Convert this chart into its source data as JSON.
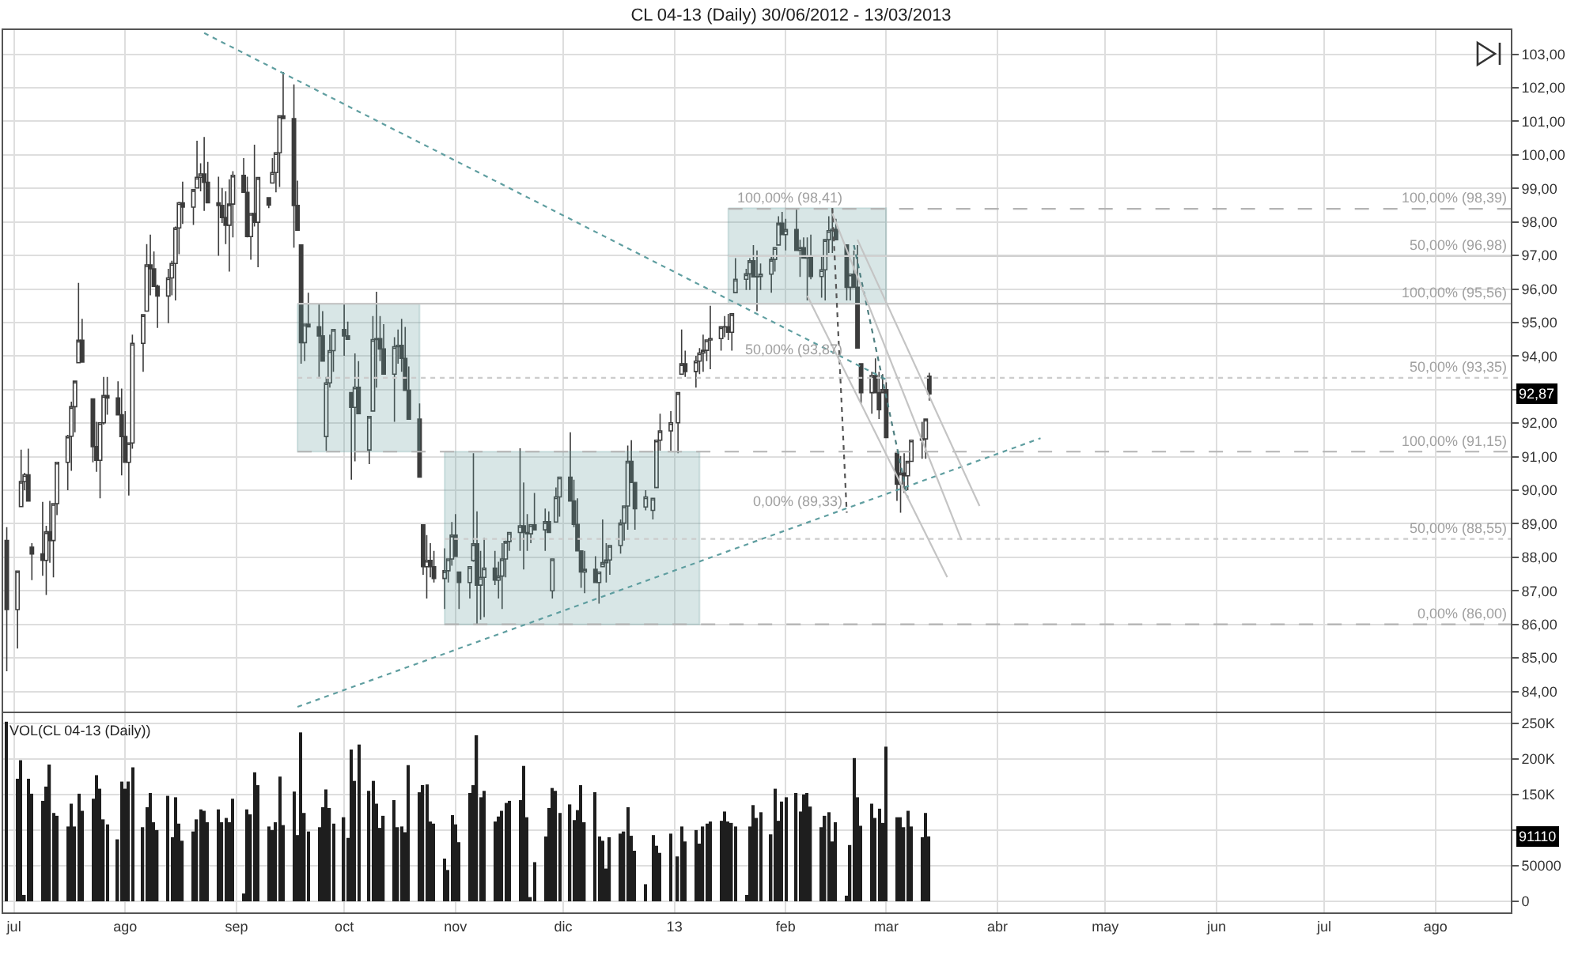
{
  "chart_data": [
    {
      "type": "candlestick",
      "title": "CL 04-13 (Daily) 30/06/2012 - 13/03/2013",
      "color": "#3c3c3c",
      "x": [
        "2012-06-29",
        "2012-07-02",
        "2012-07-03",
        "2012-07-04",
        "2012-07-05",
        "2012-07-06",
        "2012-07-09",
        "2012-07-10",
        "2012-07-11",
        "2012-07-12",
        "2012-07-13",
        "2012-07-16",
        "2012-07-17",
        "2012-07-18",
        "2012-07-19",
        "2012-07-20",
        "2012-07-23",
        "2012-07-24",
        "2012-07-25",
        "2012-07-26",
        "2012-07-27",
        "2012-07-30",
        "2012-07-31",
        "2012-08-01",
        "2012-08-02",
        "2012-08-03",
        "2012-08-06",
        "2012-08-07",
        "2012-08-08",
        "2012-08-09",
        "2012-08-10",
        "2012-08-13",
        "2012-08-14",
        "2012-08-15",
        "2012-08-16",
        "2012-08-17",
        "2012-08-20",
        "2012-08-21",
        "2012-08-22",
        "2012-08-23",
        "2012-08-24",
        "2012-08-27",
        "2012-08-28",
        "2012-08-29",
        "2012-08-30",
        "2012-08-31",
        "2012-09-03",
        "2012-09-04",
        "2012-09-05",
        "2012-09-06",
        "2012-09-07",
        "2012-09-10",
        "2012-09-11",
        "2012-09-12",
        "2012-09-13",
        "2012-09-14",
        "2012-09-17",
        "2012-09-18",
        "2012-09-19",
        "2012-09-20",
        "2012-09-21",
        "2012-09-24",
        "2012-09-25",
        "2012-09-26",
        "2012-09-27",
        "2012-09-28",
        "2012-10-01",
        "2012-10-02",
        "2012-10-03",
        "2012-10-04",
        "2012-10-05",
        "2012-10-08",
        "2012-10-09",
        "2012-10-10",
        "2012-10-11",
        "2012-10-12",
        "2012-10-15",
        "2012-10-16",
        "2012-10-17",
        "2012-10-18",
        "2012-10-19",
        "2012-10-22",
        "2012-10-23",
        "2012-10-24",
        "2012-10-25",
        "2012-10-26",
        "2012-10-29",
        "2012-10-30",
        "2012-10-31",
        "2012-11-01",
        "2012-11-02",
        "2012-11-05",
        "2012-11-06",
        "2012-11-07",
        "2012-11-08",
        "2012-11-09",
        "2012-11-12",
        "2012-11-13",
        "2012-11-14",
        "2012-11-15",
        "2012-11-16",
        "2012-11-19",
        "2012-11-20",
        "2012-11-21",
        "2012-11-22",
        "2012-11-23",
        "2012-11-26",
        "2012-11-27",
        "2012-11-28",
        "2012-11-29",
        "2012-11-30",
        "2012-12-03",
        "2012-12-04",
        "2012-12-05",
        "2012-12-06",
        "2012-12-07",
        "2012-12-10",
        "2012-12-11",
        "2012-12-12",
        "2012-12-13",
        "2012-12-14",
        "2012-12-17",
        "2012-12-18",
        "2012-12-19",
        "2012-12-20",
        "2012-12-21",
        "2012-12-24",
        "2012-12-26",
        "2012-12-27",
        "2012-12-28",
        "2012-12-31",
        "2013-01-02",
        "2013-01-03",
        "2013-01-04",
        "2013-01-07",
        "2013-01-08",
        "2013-01-09",
        "2013-01-10",
        "2013-01-11",
        "2013-01-14",
        "2013-01-15",
        "2013-01-16",
        "2013-01-17",
        "2013-01-18",
        "2013-01-21",
        "2013-01-22",
        "2013-01-23",
        "2013-01-24",
        "2013-01-25",
        "2013-01-28",
        "2013-01-29",
        "2013-01-30",
        "2013-01-31",
        "2013-02-01",
        "2013-02-04",
        "2013-02-05",
        "2013-02-06",
        "2013-02-07",
        "2013-02-08",
        "2013-02-11",
        "2013-02-12",
        "2013-02-13",
        "2013-02-14",
        "2013-02-15",
        "2013-02-18",
        "2013-02-19",
        "2013-02-20",
        "2013-02-21",
        "2013-02-22",
        "2013-02-25",
        "2013-02-26",
        "2013-02-27",
        "2013-02-28",
        "2013-03-01",
        "2013-03-04",
        "2013-03-05",
        "2013-03-06",
        "2013-03-07",
        "2013-03-08",
        "2013-03-11",
        "2013-03-12",
        "2013-03-13"
      ],
      "ohlc": [
        [
          88.5,
          88.9,
          84.6,
          86.44
        ],
        [
          86.44,
          87.59,
          85.28,
          87.59
        ],
        [
          89.51,
          91.21,
          89.51,
          90.26
        ],
        [
          90.26,
          90.52,
          90.0,
          90.46
        ],
        [
          90.46,
          91.24,
          89.68,
          89.68
        ],
        [
          88.3,
          88.42,
          87.32,
          88.1
        ],
        [
          88.1,
          89.65,
          87.45,
          87.91
        ],
        [
          87.91,
          88.94,
          86.88,
          88.76
        ],
        [
          88.76,
          89.68,
          87.84,
          88.5
        ],
        [
          88.5,
          89.6,
          87.4,
          89.6
        ],
        [
          89.6,
          90.83,
          89.26,
          90.83
        ],
        [
          90.83,
          91.65,
          90.0,
          91.61
        ],
        [
          91.61,
          92.64,
          90.58,
          92.49
        ],
        [
          92.49,
          93.25,
          91.73,
          93.25
        ],
        [
          93.8,
          96.18,
          93.8,
          94.47
        ],
        [
          94.47,
          95.11,
          93.82,
          93.82
        ],
        [
          92.72,
          92.72,
          90.83,
          91.3
        ],
        [
          91.3,
          92.04,
          90.55,
          90.89
        ],
        [
          90.89,
          92.01,
          89.76,
          92.01
        ],
        [
          92.01,
          93.38,
          91.96,
          92.82
        ],
        [
          92.82,
          93.38,
          92.25,
          92.75
        ],
        [
          92.75,
          93.25,
          92.25,
          92.25
        ],
        [
          92.25,
          93.03,
          90.44,
          91.6
        ],
        [
          91.6,
          92.36,
          90.83,
          90.83
        ],
        [
          90.83,
          91.41,
          89.84,
          91.41
        ],
        [
          91.41,
          94.64,
          91.24,
          94.38
        ],
        [
          94.38,
          95.23,
          93.53,
          95.23
        ],
        [
          95.34,
          97.34,
          95.34,
          96.72
        ],
        [
          96.72,
          97.62,
          95.81,
          96.6
        ],
        [
          96.6,
          97.12,
          96.08,
          96.08
        ],
        [
          96.08,
          96.13,
          94.84,
          95.79
        ],
        [
          95.79,
          96.6,
          94.98,
          96.33
        ],
        [
          96.33,
          96.84,
          95.81,
          96.76
        ],
        [
          96.76,
          97.86,
          95.66,
          97.82
        ],
        [
          97.82,
          98.6,
          97.04,
          98.57
        ],
        [
          98.57,
          99.2,
          97.94,
          98.44
        ],
        [
          98.44,
          98.96,
          97.91,
          98.96
        ],
        [
          99.01,
          100.42,
          99.01,
          99.33
        ],
        [
          99.33,
          99.75,
          98.91,
          99.43
        ],
        [
          99.43,
          100.53,
          98.33,
          99.18
        ],
        [
          99.18,
          99.79,
          98.57,
          98.57
        ],
        [
          98.57,
          99.35,
          96.99,
          98.49
        ],
        [
          98.49,
          99.01,
          97.97,
          98.13
        ],
        [
          98.13,
          98.91,
          97.34,
          97.9
        ],
        [
          97.9,
          99.27,
          96.52,
          98.53
        ],
        [
          98.53,
          99.51,
          97.54,
          99.39
        ],
        [
          99.39,
          99.9,
          98.88,
          98.88
        ],
        [
          98.88,
          99.35,
          97.54,
          97.56
        ],
        [
          97.56,
          98.25,
          96.87,
          98.25
        ],
        [
          98.25,
          100.3,
          97.86,
          97.99
        ],
        [
          97.99,
          99.32,
          96.65,
          99.32
        ],
        [
          98.72,
          98.72,
          98.41,
          98.5
        ],
        [
          99.16,
          99.9,
          99.16,
          99.47
        ],
        [
          99.47,
          100.06,
          98.88,
          100.06
        ],
        [
          100.06,
          101.16,
          99.04,
          101.16
        ],
        [
          101.16,
          102.47,
          101.08,
          101.08
        ],
        [
          101.08,
          102.1,
          97.23,
          98.49
        ],
        [
          98.49,
          99.23,
          97.75,
          97.75
        ],
        [
          97.31,
          97.31,
          93.77,
          94.4
        ],
        [
          94.4,
          94.95,
          93.85,
          94.95
        ],
        [
          94.95,
          95.89,
          94.87,
          94.87
        ],
        [
          94.87,
          95.58,
          93.38,
          94.6
        ],
        [
          94.6,
          95.34,
          93.85,
          93.85
        ],
        [
          91.6,
          93.38,
          91.18,
          93.2
        ],
        [
          93.2,
          94.64,
          93.06,
          94.16
        ],
        [
          94.16,
          94.79,
          93.53,
          94.79
        ],
        [
          94.79,
          95.58,
          94.01,
          94.6
        ],
        [
          94.6,
          95.03,
          94.48,
          94.5
        ],
        [
          92.91,
          92.91,
          90.31,
          92.47
        ],
        [
          92.47,
          94.08,
          90.86,
          93.07
        ],
        [
          93.07,
          93.85,
          92.28,
          92.28
        ],
        [
          91.2,
          92.2,
          90.78,
          92.2
        ],
        [
          92.36,
          95.19,
          92.36,
          94.49
        ],
        [
          94.49,
          95.92,
          93.06,
          94.52
        ],
        [
          94.52,
          95.19,
          93.85,
          94.21
        ],
        [
          94.21,
          94.95,
          93.46,
          93.46
        ],
        [
          93.46,
          94.56,
          92.04,
          94.28
        ],
        [
          94.28,
          94.79,
          93.77,
          94.32
        ],
        [
          94.32,
          95.11,
          93.53,
          93.93
        ],
        [
          93.93,
          94.87,
          92.98,
          92.98
        ],
        [
          92.98,
          93.69,
          92.12,
          92.12
        ],
        [
          92.12,
          92.59,
          90.39,
          90.39
        ],
        [
          88.97,
          88.97,
          87.48,
          87.72
        ],
        [
          87.72,
          88.66,
          86.77,
          87.91
        ],
        [
          87.91,
          88.42,
          87.4,
          87.72
        ],
        [
          87.72,
          88.19,
          87.25,
          87.37
        ],
        [
          87.37,
          88.27,
          86.46,
          87.6
        ],
        [
          87.6,
          87.95,
          87.25,
          87.95
        ],
        [
          87.95,
          89.05,
          87.75,
          88.66
        ],
        [
          88.66,
          89.29,
          88.03,
          88.03
        ],
        [
          87.56,
          87.56,
          86.46,
          87.25
        ],
        [
          87.25,
          87.72,
          86.77,
          87.72
        ],
        [
          87.9,
          91.1,
          87.87,
          88.4
        ],
        [
          88.4,
          89.37,
          85.99,
          87.17
        ],
        [
          87.17,
          88.19,
          86.14,
          87.4
        ],
        [
          87.4,
          88.58,
          86.22,
          87.68
        ],
        [
          87.68,
          88.19,
          87.17,
          87.32
        ],
        [
          87.32,
          87.87,
          86.77,
          87.44
        ],
        [
          87.44,
          88.42,
          86.46,
          87.95
        ],
        [
          87.95,
          88.5,
          87.4,
          88.47
        ],
        [
          88.47,
          88.74,
          88.19,
          88.74
        ],
        [
          88.74,
          91.25,
          88.19,
          88.94
        ],
        [
          88.94,
          90.23,
          87.64,
          88.74
        ],
        [
          88.74,
          89.29,
          88.19,
          88.7
        ],
        [
          88.7,
          88.97,
          88.42,
          88.97
        ],
        [
          88.97,
          89.92,
          88.82,
          88.82
        ],
        [
          88.82,
          89.45,
          88.19,
          89.06
        ],
        [
          89.06,
          89.37,
          88.74,
          88.74
        ],
        [
          87.0,
          87.95,
          86.77,
          87.95
        ],
        [
          89.05,
          90.08,
          89.05,
          89.8
        ],
        [
          89.8,
          90.39,
          89.21,
          90.39
        ],
        [
          90.39,
          91.73,
          89.68,
          89.68
        ],
        [
          89.68,
          90.31,
          88.9,
          88.98
        ],
        [
          88.98,
          89.76,
          88.19,
          88.19
        ],
        [
          88.19,
          88.19,
          87.09,
          87.56
        ],
        [
          87.56,
          88.19,
          86.93,
          87.64
        ],
        [
          87.64,
          88.03,
          87.25,
          87.25
        ],
        [
          87.25,
          87.56,
          86.62,
          87.56
        ],
        [
          87.72,
          89.13,
          87.72,
          87.84
        ],
        [
          87.84,
          88.42,
          87.25,
          87.92
        ],
        [
          87.92,
          88.35,
          87.48,
          88.35
        ],
        [
          88.35,
          89.13,
          88.11,
          89.02
        ],
        [
          89.02,
          89.53,
          88.5,
          89.53
        ],
        [
          89.53,
          91.33,
          88.82,
          90.86
        ],
        [
          90.86,
          91.49,
          90.23,
          90.23
        ],
        [
          90.23,
          90.23,
          88.82,
          89.45
        ],
        [
          89.5,
          90.0,
          89.4,
          89.8
        ],
        [
          89.4,
          89.76,
          89.13,
          89.76
        ],
        [
          90.08,
          91.49,
          90.08,
          91.49
        ],
        [
          91.49,
          92.28,
          91.18,
          91.77
        ],
        [
          91.77,
          92.36,
          91.18,
          92.01
        ],
        [
          92.01,
          92.91,
          91.1,
          92.91
        ],
        [
          93.46,
          94.79,
          93.46,
          93.77
        ],
        [
          93.77,
          94.16,
          93.38,
          93.54
        ],
        [
          93.54,
          94.01,
          93.06,
          93.85
        ],
        [
          93.85,
          94.24,
          93.46,
          94.09
        ],
        [
          94.09,
          94.64,
          93.53,
          94.17
        ],
        [
          94.17,
          94.48,
          93.85,
          94.48
        ],
        [
          94.48,
          95.5,
          93.61,
          94.52
        ],
        [
          94.52,
          94.87,
          94.16,
          94.87
        ],
        [
          94.87,
          95.19,
          94.56,
          94.87
        ],
        [
          94.87,
          95.26,
          94.48,
          94.71
        ],
        [
          94.71,
          95.26,
          94.16,
          95.26
        ],
        [
          95.89,
          96.92,
          95.89,
          96.29
        ],
        [
          96.29,
          96.6,
          95.97,
          96.45
        ],
        [
          96.45,
          96.92,
          95.97,
          96.84
        ],
        [
          96.84,
          97.31,
          96.36,
          96.36
        ],
        [
          96.36,
          97.15,
          95.34,
          96.37
        ],
        [
          96.37,
          96.76,
          95.97,
          96.44
        ],
        [
          96.44,
          96.99,
          95.89,
          96.88
        ],
        [
          96.88,
          97.23,
          96.52,
          97.23
        ],
        [
          97.31,
          98.17,
          97.31,
          97.96
        ],
        [
          97.96,
          98.3,
          97.62,
          97.62
        ],
        [
          97.62,
          98.09,
          97.15,
          97.77
        ],
        [
          97.77,
          98.38,
          97.15,
          97.15
        ],
        [
          97.15,
          97.47,
          96.36,
          97.23
        ],
        [
          97.23,
          97.54,
          96.92,
          96.92
        ],
        [
          96.92,
          97.54,
          95.66,
          96.96
        ],
        [
          96.96,
          97.62,
          96.29,
          96.37
        ],
        [
          96.37,
          96.99,
          95.74,
          96.57
        ],
        [
          96.57,
          97.47,
          95.66,
          97.47
        ],
        [
          97.47,
          98.17,
          97.07,
          97.74
        ],
        [
          97.74,
          98.41,
          97.07,
          97.78
        ],
        [
          97.78,
          98.09,
          97.47,
          97.47
        ],
        [
          97.31,
          97.31,
          95.66,
          96.05
        ],
        [
          96.05,
          96.44,
          95.66,
          96.44
        ],
        [
          96.44,
          97.15,
          96.05,
          96.05
        ],
        [
          96.05,
          97.31,
          94.24,
          94.24
        ],
        [
          93.77,
          93.77,
          92.59,
          92.91
        ],
        [
          92.91,
          93.53,
          92.28,
          93.42
        ],
        [
          93.42,
          93.93,
          92.91,
          92.91
        ],
        [
          92.91,
          93.53,
          92.12,
          92.4
        ],
        [
          92.91,
          93.46,
          92.91,
          93.0
        ],
        [
          93.0,
          93.22,
          91.57,
          91.57
        ],
        [
          91.1,
          91.1,
          89.68,
          90.18
        ],
        [
          90.18,
          91.02,
          89.33,
          90.51
        ],
        [
          90.51,
          91.1,
          89.92,
          90.43
        ],
        [
          90.43,
          90.86,
          90.0,
          90.86
        ],
        [
          90.86,
          91.49,
          90.86,
          91.49
        ],
        [
          91.49,
          92.04,
          90.94,
          91.53
        ],
        [
          91.53,
          92.12,
          90.94,
          92.12
        ],
        [
          93.4,
          93.5,
          92.67,
          92.87
        ]
      ],
      "series": [
        {
          "type": "line",
          "x": [
            "2012-09-18",
            "2012-10-22"
          ],
          "values": [
            null,
            null
          ],
          "lower": [
            91.15,
            91.15
          ],
          "upper": [
            95.56,
            95.56
          ],
          "color": "#d8e6e6"
        },
        {
          "type": "line",
          "x": [
            "2012-10-29",
            "2013-01-08"
          ],
          "values": [
            null,
            null
          ],
          "lower": [
            86.0,
            86.0
          ],
          "upper": [
            91.15,
            91.15
          ],
          "color": "#d8e6e6"
        },
        {
          "type": "line",
          "x": [
            "2013-01-16",
            "2013-03-01"
          ],
          "values": [
            null,
            null
          ],
          "lower": [
            95.56,
            95.56
          ],
          "upper": [
            98.41,
            98.41
          ],
          "color": "#d8e6e6"
        },
        {
          "type": "line",
          "x": [
            "2013-01-16",
            "2013-08-22"
          ],
          "values": [
            98.39,
            98.39
          ],
          "color": "#b4b4b4",
          "line_style": "dashed"
        },
        {
          "type": "line",
          "x": [
            "2013-01-16",
            "2013-08-22"
          ],
          "values": [
            96.98,
            96.98
          ],
          "color": "#d2d2d2",
          "line_style": "solid"
        },
        {
          "type": "line",
          "x": [
            "2012-09-18",
            "2013-08-22"
          ],
          "values": [
            95.56,
            95.56
          ],
          "color": "#c8c8c8",
          "line_style": "solid"
        },
        {
          "type": "line",
          "x": [
            "2012-09-18",
            "2013-08-22"
          ],
          "values": [
            93.35,
            93.35
          ],
          "color": "#cccccc",
          "line_style": "dotted"
        },
        {
          "type": "line",
          "x": [
            "2012-09-18",
            "2013-08-22"
          ],
          "values": [
            91.15,
            91.15
          ],
          "color": "#b4b4b4",
          "line_style": "dashed"
        },
        {
          "type": "line",
          "x": [
            "2012-10-29",
            "2013-08-22"
          ],
          "values": [
            88.55,
            88.55
          ],
          "color": "#cccccc",
          "line_style": "dotted"
        },
        {
          "type": "line",
          "x": [
            "2012-10-29",
            "2013-08-22"
          ],
          "values": [
            86.0,
            86.0
          ],
          "color": "#b4b4b4",
          "line_style": "dashed"
        },
        {
          "type": "line",
          "x": [
            "2012-08-23",
            "2013-03-01"
          ],
          "values": [
            103.63,
            93.3
          ],
          "color": "#5f9ea0",
          "line_style": "dotted"
        },
        {
          "type": "line",
          "x": [
            "2012-09-18",
            "2013-04-13"
          ],
          "values": [
            83.54,
            91.55
          ],
          "color": "#5f9ea0",
          "line_style": "dotted"
        },
        {
          "type": "line",
          "x": [
            "2013-02-14",
            "2013-02-18"
          ],
          "values": [
            98.41,
            89.33
          ],
          "color": "#555555",
          "line_style": "dotted"
        },
        {
          "type": "line",
          "x": [
            "2013-02-20",
            "2013-03-07"
          ],
          "values": [
            97.31,
            89.77
          ],
          "color": "#4f7f80",
          "line_style": "dotted"
        },
        {
          "type": "line",
          "x": [
            "2013-02-07",
            "2013-03-18"
          ],
          "values": [
            95.8,
            87.41
          ],
          "color": "#c4c4c4",
          "line_style": "solid"
        },
        {
          "type": "line",
          "x": [
            "2013-02-14",
            "2013-03-22"
          ],
          "values": [
            98.25,
            88.51
          ],
          "color": "#c4c4c4",
          "line_style": "solid"
        },
        {
          "type": "line",
          "x": [
            "2013-02-21",
            "2013-03-27"
          ],
          "values": [
            97.47,
            89.53
          ],
          "color": "#c4c4c4",
          "line_style": "solid"
        }
      ],
      "annotations": [
        {
          "text": "100,00% (98,41)",
          "x": "2013-02-18",
          "y": 98.41
        },
        {
          "text": "50,00% (93,87)",
          "x": "2013-02-18",
          "y": 93.87
        },
        {
          "text": "0,00% (89,33)",
          "x": "2013-02-18",
          "y": 89.33
        },
        {
          "text": "100,00% (98,39)",
          "x": "2013-08-22",
          "y": 98.39
        },
        {
          "text": "50,00% (96,98)",
          "x": "2013-08-22",
          "y": 96.98
        },
        {
          "text": "100,00% (95,56)",
          "x": "2013-08-22",
          "y": 95.56
        },
        {
          "text": "50,00% (93,35)",
          "x": "2013-08-22",
          "y": 93.35
        },
        {
          "text": "100,00% (91,15)",
          "x": "2013-08-22",
          "y": 91.15
        },
        {
          "text": "50,00% (88,55)",
          "x": "2013-08-22",
          "y": 88.55
        },
        {
          "text": "0,00% (86,00)",
          "x": "2013-08-22",
          "y": 86.0
        },
        "92,87"
      ],
      "xlim": [
        "2012-06-28",
        "2013-08-22"
      ],
      "xticks": [
        {
          "value": "2012-07-01",
          "label": null
        },
        {
          "value": "2012-08-01",
          "label": null
        },
        {
          "value": "2012-09-01",
          "label": null
        },
        {
          "value": "2012-10-01",
          "label": null
        },
        {
          "value": "2012-11-01",
          "label": null
        },
        {
          "value": "2012-12-01",
          "label": null
        },
        {
          "value": "2013-01-01",
          "label": null
        },
        {
          "value": "2013-02-01",
          "label": null
        },
        {
          "value": "2013-03-01",
          "label": null
        },
        {
          "value": "2013-04-01",
          "label": null
        },
        {
          "value": "2013-05-01",
          "label": null
        },
        {
          "value": "2013-06-01",
          "label": null
        },
        {
          "value": "2013-07-01",
          "label": null
        },
        {
          "value": "2013-08-01",
          "label": null
        }
      ],
      "ylim": [
        83.4,
        103.72
      ],
      "yticks": [
        {
          "value": 84,
          "label": "84,00"
        },
        {
          "value": 85,
          "label": "85,00"
        },
        {
          "value": 86,
          "label": "86,00"
        },
        {
          "value": 87,
          "label": "87,00"
        },
        {
          "value": 88,
          "label": "88,00"
        },
        {
          "value": 89,
          "label": "89,00"
        },
        {
          "value": 90,
          "label": "90,00"
        },
        {
          "value": 91,
          "label": "91,00"
        },
        {
          "value": 92,
          "label": "92,00"
        },
        {
          "value": 93,
          "label": null
        },
        {
          "value": 94,
          "label": "94,00"
        },
        {
          "value": 95,
          "label": "95,00"
        },
        {
          "value": 96,
          "label": "96,00"
        },
        {
          "value": 97,
          "label": "97,00"
        },
        {
          "value": 98,
          "label": "98,00"
        },
        {
          "value": 99,
          "label": "99,00"
        },
        {
          "value": 100,
          "label": "100,00"
        },
        {
          "value": 101,
          "label": "101,00"
        },
        {
          "value": 102,
          "label": "102,00"
        },
        {
          "value": 103,
          "label": "103,00"
        }
      ],
      "grid": true,
      "tick_labels": "y"
    },
    {
      "type": "bar",
      "title": "VOL(CL 04-13 (Daily))",
      "color": "#1e1e1e",
      "x": [
        "2012-06-29",
        "2012-07-02",
        "2012-07-03",
        "2012-07-04",
        "2012-07-05",
        "2012-07-06",
        "2012-07-09",
        "2012-07-10",
        "2012-07-11",
        "2012-07-12",
        "2012-07-13",
        "2012-07-16",
        "2012-07-17",
        "2012-07-18",
        "2012-07-19",
        "2012-07-20",
        "2012-07-23",
        "2012-07-24",
        "2012-07-25",
        "2012-07-26",
        "2012-07-27",
        "2012-07-30",
        "2012-07-31",
        "2012-08-01",
        "2012-08-02",
        "2012-08-03",
        "2012-08-06",
        "2012-08-07",
        "2012-08-08",
        "2012-08-09",
        "2012-08-10",
        "2012-08-13",
        "2012-08-14",
        "2012-08-15",
        "2012-08-16",
        "2012-08-17",
        "2012-08-20",
        "2012-08-21",
        "2012-08-22",
        "2012-08-23",
        "2012-08-24",
        "2012-08-27",
        "2012-08-28",
        "2012-08-29",
        "2012-08-30",
        "2012-08-31",
        "2012-09-03",
        "2012-09-04",
        "2012-09-05",
        "2012-09-06",
        "2012-09-07",
        "2012-09-10",
        "2012-09-11",
        "2012-09-12",
        "2012-09-13",
        "2012-09-14",
        "2012-09-17",
        "2012-09-18",
        "2012-09-19",
        "2012-09-20",
        "2012-09-21",
        "2012-09-24",
        "2012-09-25",
        "2012-09-26",
        "2012-09-27",
        "2012-09-28",
        "2012-10-01",
        "2012-10-02",
        "2012-10-03",
        "2012-10-04",
        "2012-10-05",
        "2012-10-08",
        "2012-10-09",
        "2012-10-10",
        "2012-10-11",
        "2012-10-12",
        "2012-10-15",
        "2012-10-16",
        "2012-10-17",
        "2012-10-18",
        "2012-10-19",
        "2012-10-22",
        "2012-10-23",
        "2012-10-24",
        "2012-10-25",
        "2012-10-26",
        "2012-10-29",
        "2012-10-30",
        "2012-10-31",
        "2012-11-01",
        "2012-11-02",
        "2012-11-05",
        "2012-11-06",
        "2012-11-07",
        "2012-11-08",
        "2012-11-09",
        "2012-11-12",
        "2012-11-13",
        "2012-11-14",
        "2012-11-15",
        "2012-11-16",
        "2012-11-19",
        "2012-11-20",
        "2012-11-21",
        "2012-11-22",
        "2012-11-23",
        "2012-11-26",
        "2012-11-27",
        "2012-11-28",
        "2012-11-29",
        "2012-11-30",
        "2012-12-03",
        "2012-12-04",
        "2012-12-05",
        "2012-12-06",
        "2012-12-07",
        "2012-12-10",
        "2012-12-11",
        "2012-12-12",
        "2012-12-13",
        "2012-12-14",
        "2012-12-17",
        "2012-12-18",
        "2012-12-19",
        "2012-12-20",
        "2012-12-21",
        "2012-12-24",
        "2012-12-26",
        "2012-12-27",
        "2012-12-28",
        "2012-12-31",
        "2013-01-02",
        "2013-01-03",
        "2013-01-04",
        "2013-01-07",
        "2013-01-08",
        "2013-01-09",
        "2013-01-10",
        "2013-01-11",
        "2013-01-14",
        "2013-01-15",
        "2013-01-16",
        "2013-01-17",
        "2013-01-18",
        "2013-01-21",
        "2013-01-22",
        "2013-01-23",
        "2013-01-24",
        "2013-01-25",
        "2013-01-28",
        "2013-01-29",
        "2013-01-30",
        "2013-01-31",
        "2013-02-01",
        "2013-02-04",
        "2013-02-05",
        "2013-02-06",
        "2013-02-07",
        "2013-02-08",
        "2013-02-11",
        "2013-02-12",
        "2013-02-13",
        "2013-02-14",
        "2013-02-15",
        "2013-02-18",
        "2013-02-19",
        "2013-02-20",
        "2013-02-21",
        "2013-02-22",
        "2013-02-25",
        "2013-02-26",
        "2013-02-27",
        "2013-02-28",
        "2013-03-01",
        "2013-03-04",
        "2013-03-05",
        "2013-03-06",
        "2013-03-07",
        "2013-03-08",
        "2013-03-11",
        "2013-03-12",
        "2013-03-13"
      ],
      "values": [
        252000,
        172000,
        198000,
        9000,
        172000,
        151000,
        141000,
        161000,
        192000,
        124000,
        120000,
        105000,
        137000,
        105000,
        151000,
        127000,
        144000,
        177000,
        158000,
        115000,
        108000,
        87000,
        168000,
        158000,
        168000,
        188000,
        104000,
        132000,
        152000,
        111000,
        100000,
        148000,
        90000,
        146000,
        109000,
        85000,
        98000,
        115000,
        129000,
        127000,
        111000,
        129000,
        111000,
        117000,
        111000,
        144000,
        11000,
        129000,
        122000,
        181000,
        163000,
        105000,
        100000,
        111000,
        175000,
        107000,
        154000,
        93000,
        237000,
        124000,
        98000,
        104000,
        132000,
        157000,
        131000,
        109000,
        118000,
        89000,
        213000,
        169000,
        220000,
        155000,
        169000,
        137000,
        103000,
        120000,
        142000,
        104000,
        105000,
        97000,
        191000,
        153000,
        163000,
        164000,
        112000,
        109000,
        60000,
        44000,
        121000,
        108000,
        83000,
        152000,
        163000,
        233000,
        146000,
        155000,
        112000,
        119000,
        127000,
        138000,
        141000,
        142000,
        190000,
        118000,
        6000,
        55000,
        91000,
        131000,
        159000,
        155000,
        124000,
        136000,
        114000,
        128000,
        163000,
        111000,
        153000,
        91000,
        85000,
        46000,
        90000,
        95000,
        98000,
        132000,
        92000,
        71000,
        24000,
        93000,
        78000,
        68000,
        95000,
        63000,
        105000,
        84000,
        100000,
        81000,
        105000,
        109000,
        112000,
        113000,
        126000,
        112000,
        110000,
        105000,
        9000,
        105000,
        135000,
        117000,
        125000,
        94000,
        158000,
        113000,
        140000,
        146000,
        152000,
        126000,
        150000,
        152000,
        133000,
        104000,
        120000,
        125000,
        84000,
        111000,
        8000,
        79000,
        201000,
        146000,
        106000,
        137000,
        117000,
        130000,
        110000,
        217000,
        118000,
        118000,
        104000,
        127000,
        105000,
        90000,
        124000,
        91110
      ],
      "annotations": [
        "91110"
      ],
      "xlim": [
        "2012-06-28",
        "2013-08-22"
      ],
      "xticks": [
        {
          "value": "2012-07-01",
          "label": "jul"
        },
        {
          "value": "2012-08-01",
          "label": "ago"
        },
        {
          "value": "2012-09-01",
          "label": "sep"
        },
        {
          "value": "2012-10-01",
          "label": "oct"
        },
        {
          "value": "2012-11-01",
          "label": "nov"
        },
        {
          "value": "2012-12-01",
          "label": "dic"
        },
        {
          "value": "2013-01-01",
          "label": "13"
        },
        {
          "value": "2013-02-01",
          "label": "feb"
        },
        {
          "value": "2013-03-01",
          "label": "mar"
        },
        {
          "value": "2013-04-01",
          "label": "abr"
        },
        {
          "value": "2013-05-01",
          "label": "may"
        },
        {
          "value": "2013-06-01",
          "label": "jun"
        },
        {
          "value": "2013-07-01",
          "label": "jul"
        },
        {
          "value": "2013-08-01",
          "label": "ago"
        }
      ],
      "ylim": [
        -15500,
        264000
      ],
      "yticks": [
        0,
        50000,
        {
          "value": 100000,
          "label": null
        },
        {
          "value": 150000,
          "label": "150K"
        },
        {
          "value": 200000,
          "label": "200K"
        },
        {
          "value": 250000,
          "label": "250K"
        }
      ],
      "grid": true
    }
  ]
}
